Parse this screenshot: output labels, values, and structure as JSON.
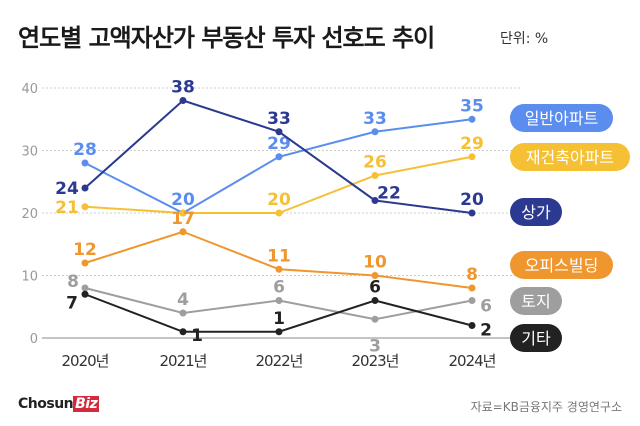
{
  "title": "연도별 고액자산가 부동산 투자 선호도 추이",
  "unit": "단위: %",
  "logo": {
    "text": "Chosun",
    "accent": "Biz"
  },
  "source": "자료=KB금융지주 경영연구소",
  "chart_data": {
    "type": "line",
    "title": "연도별 고액자산가 부동산 투자 선호도 추이",
    "categories": [
      "2020년",
      "2021년",
      "2022년",
      "2023년",
      "2024년"
    ],
    "ylim": [
      0,
      40
    ],
    "yticks": [
      "0",
      "10",
      "20",
      "30",
      "40"
    ],
    "grid": true,
    "legend": "right",
    "series": [
      {
        "name": "일반아파트",
        "color": "#5b8def",
        "values": [
          28,
          20,
          29,
          33,
          35
        ]
      },
      {
        "name": "재건축아파트",
        "color": "#f5c033",
        "values": [
          21,
          20,
          20,
          26,
          29
        ]
      },
      {
        "name": "상가",
        "color": "#2b3990",
        "values": [
          24,
          38,
          33,
          22,
          20
        ]
      },
      {
        "name": "오피스빌딩",
        "color": "#f0962e",
        "values": [
          12,
          17,
          11,
          10,
          8
        ]
      },
      {
        "name": "토지",
        "color": "#9e9e9e",
        "values": [
          8,
          4,
          6,
          3,
          6
        ]
      },
      {
        "name": "기타",
        "color": "#222222",
        "values": [
          7,
          1,
          1,
          6,
          2
        ]
      }
    ]
  }
}
